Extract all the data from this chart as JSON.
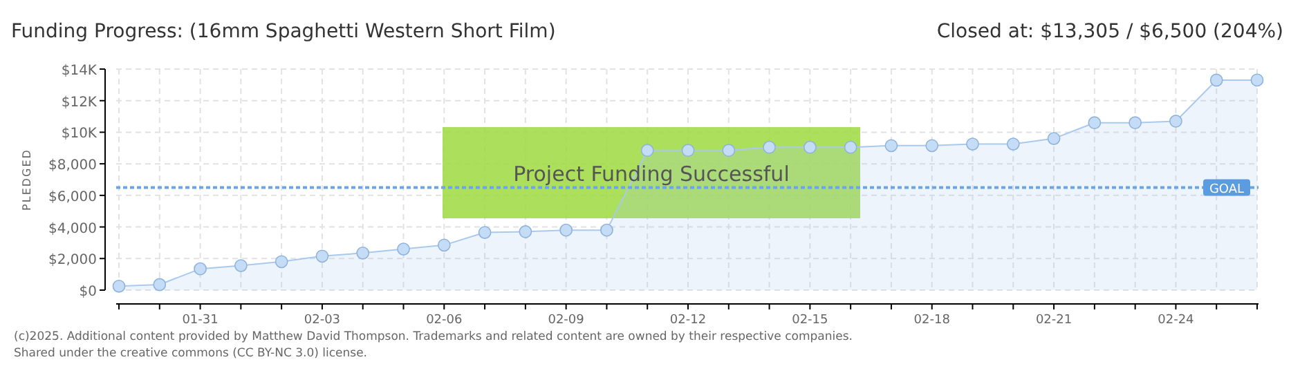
{
  "chart_data": {
    "type": "area",
    "title": "Funding Progress: (16mm Spaghetti Western Short Film)",
    "subtitle": "Closed at: $13,305 / $6,500 (204%)",
    "ylabel": "PLEDGED",
    "categories": [
      null,
      null,
      "01-31",
      null,
      null,
      "02-03",
      null,
      null,
      "02-06",
      null,
      null,
      "02-09",
      null,
      null,
      "02-12",
      null,
      null,
      "02-15",
      null,
      null,
      "02-18",
      null,
      null,
      "02-21",
      null,
      null,
      "02-24",
      null,
      null
    ],
    "series": [
      {
        "color": "#a9c9ee",
        "values": [
          250,
          350,
          1350,
          1550,
          1800,
          2150,
          2350,
          2600,
          2850,
          3650,
          3700,
          3800,
          3800,
          8850,
          8850,
          8850,
          9050,
          9050,
          9050,
          9150,
          9150,
          9250,
          9250,
          9600,
          10600,
          10600,
          10700,
          13300,
          13305
        ]
      }
    ],
    "ylim": [
      0,
      14000
    ],
    "yticks": [
      {
        "value": 0,
        "label": "$0"
      },
      {
        "value": 2000,
        "label": "$2,000"
      },
      {
        "value": 4000,
        "label": "$4,000"
      },
      {
        "value": 6000,
        "label": "$6,000"
      },
      {
        "value": 8000,
        "label": "$8,000"
      },
      {
        "value": 10000,
        "label": "$10K"
      },
      {
        "value": 12000,
        "label": "$12K"
      },
      {
        "value": 14000,
        "label": "$14K"
      }
    ],
    "grid": true,
    "marker": "circle",
    "ref_lines": [
      {
        "axis": "y",
        "value": 6500,
        "label": "GOAL",
        "color": "#6aa5e6",
        "line_style": "dotted"
      }
    ],
    "annotations": [
      "Project Funding Successful",
      "(c)2025. Additional content provided by Matthew David Thompson. Trademarks and related content are owned by their respective companies.",
      "Shared under the creative commons (CC BY-NC 3.0) license."
    ]
  }
}
